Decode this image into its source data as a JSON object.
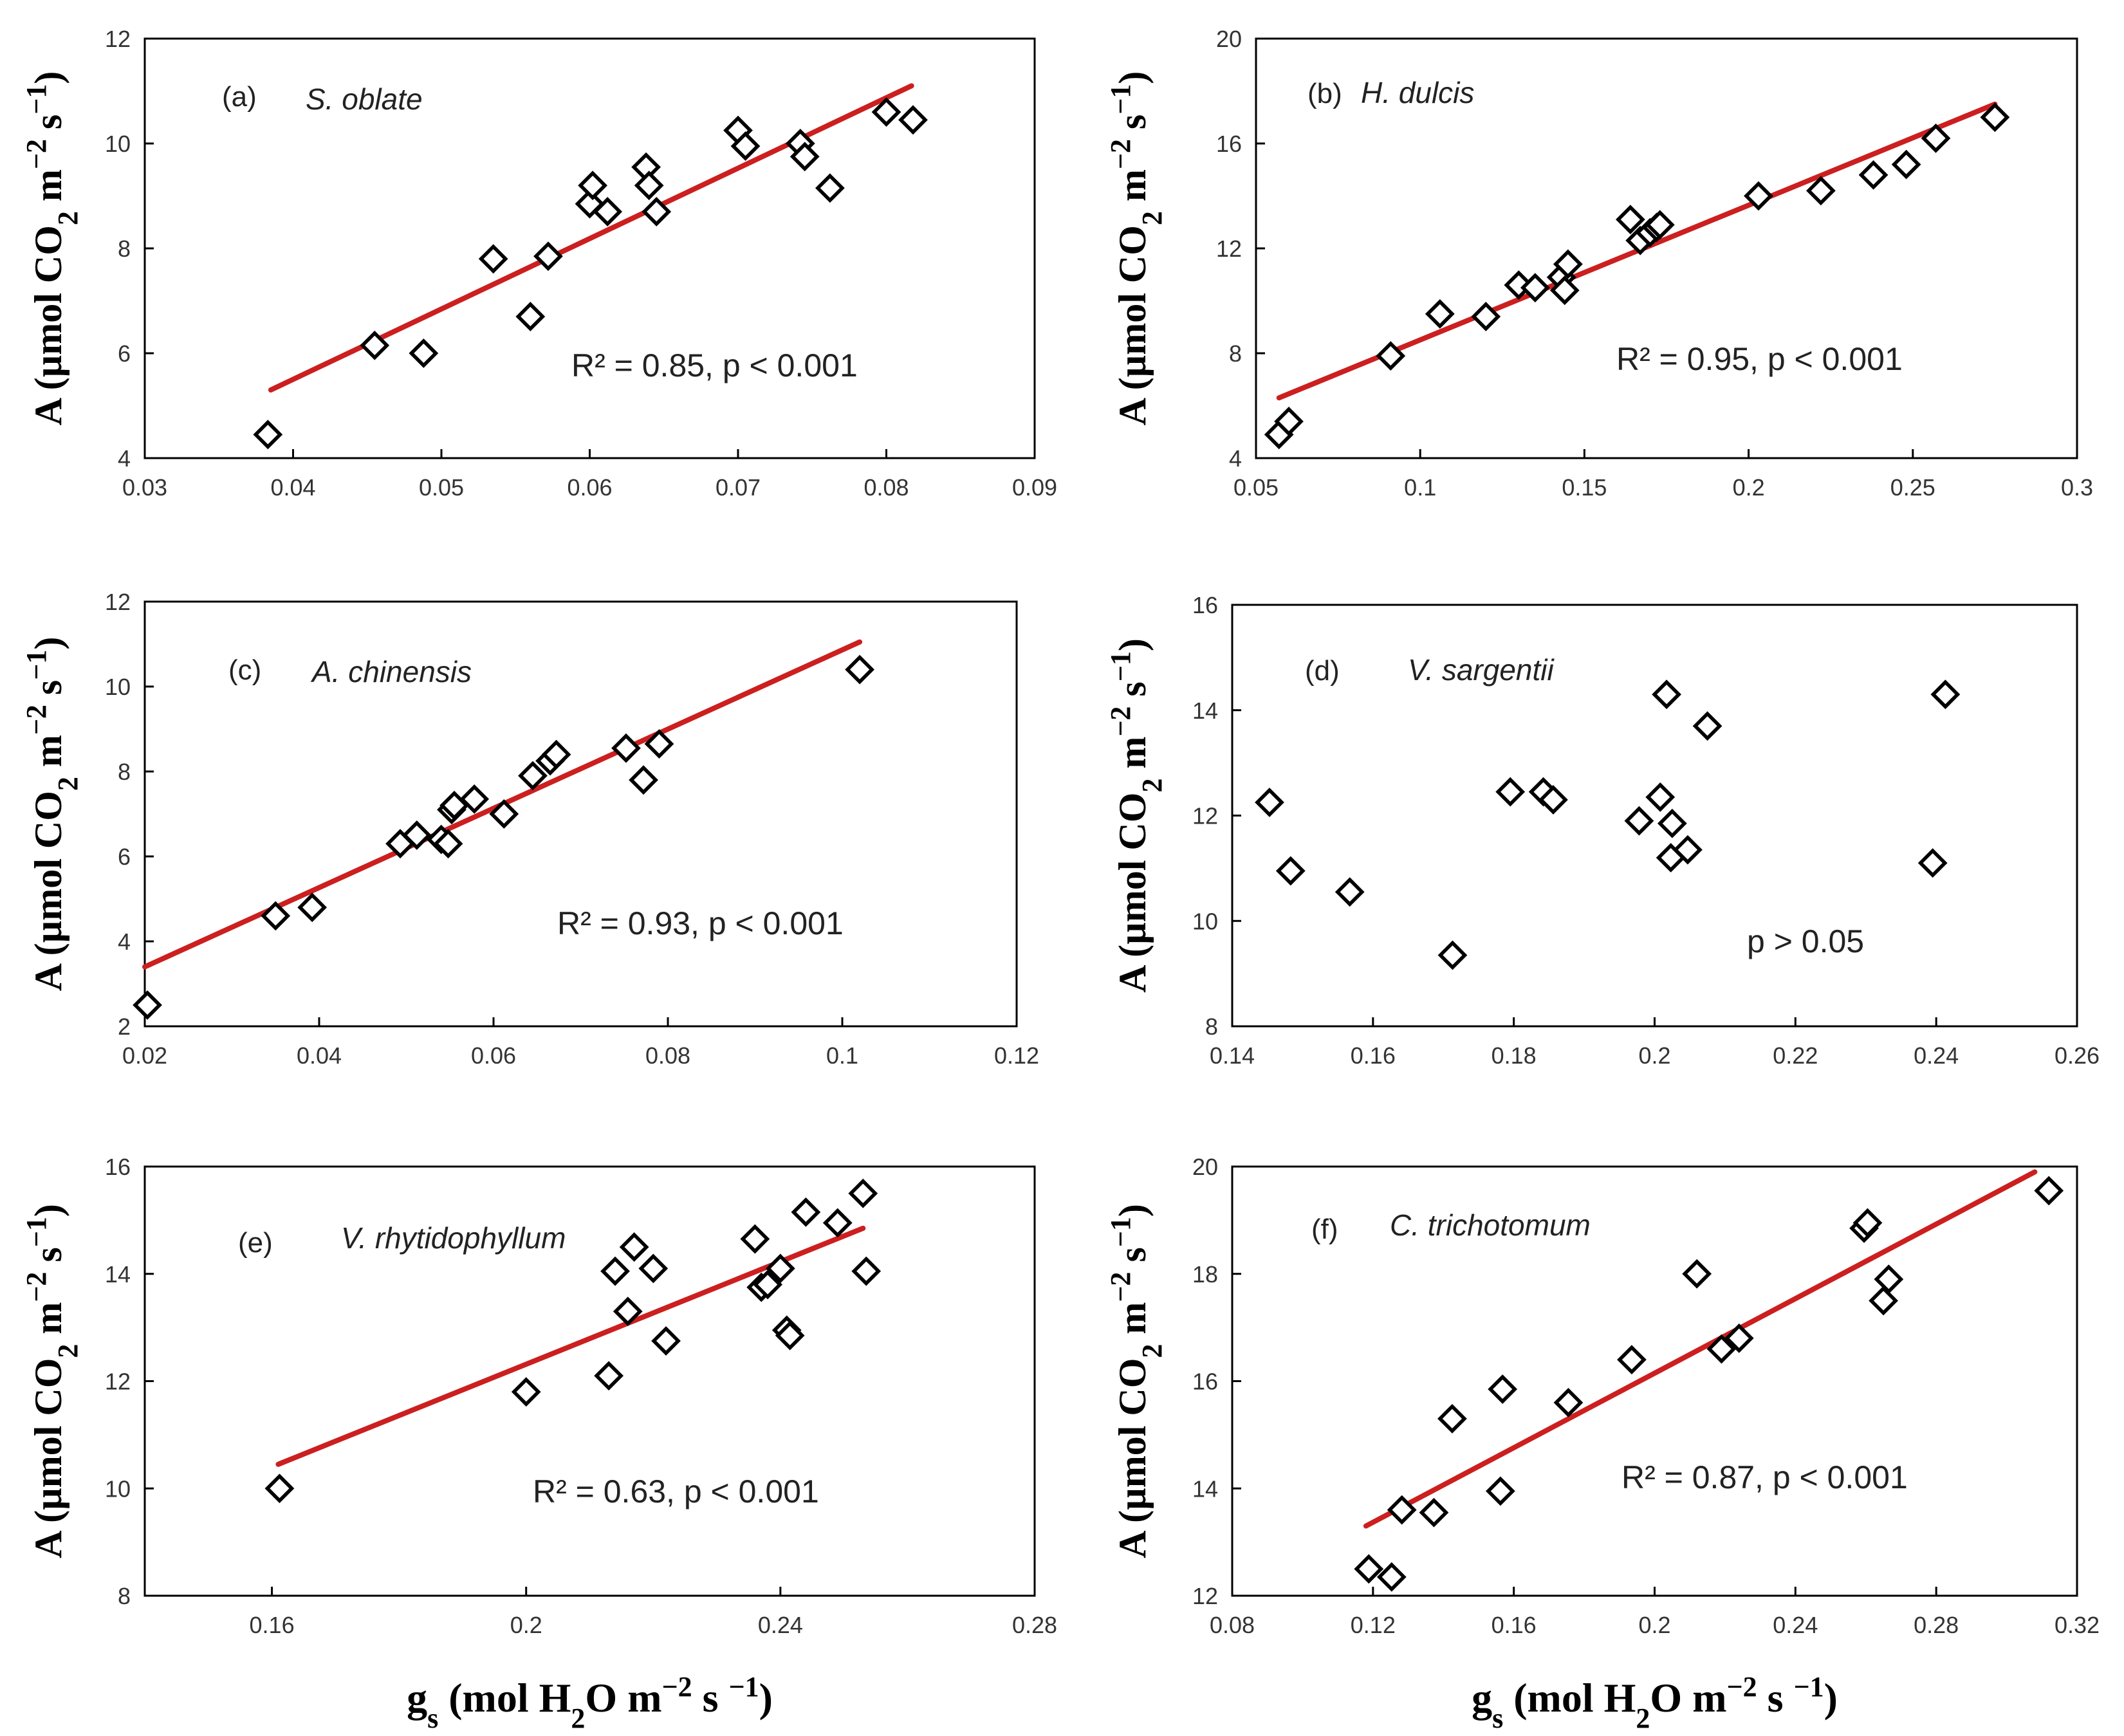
{
  "chart_data": [
    {
      "type": "scatter",
      "panel": "(a)",
      "species": "S. oblate",
      "ylabel": "A (µmol CO2 m−2 s−1)",
      "xlabel": "",
      "xlim": [
        0.03,
        0.09
      ],
      "ylim": [
        4,
        12
      ],
      "xticks": [
        "0.03",
        "0.04",
        "0.05",
        "0.06",
        "0.07",
        "0.08",
        "0.09"
      ],
      "yticks": [
        "4",
        "6",
        "8",
        "10",
        "12"
      ],
      "stat": "R² = 0.85, p < 0.001",
      "x": [
        0.0383,
        0.0455,
        0.0488,
        0.0535,
        0.056,
        0.0572,
        0.06,
        0.0602,
        0.0612,
        0.0638,
        0.064,
        0.0645,
        0.07,
        0.0705,
        0.0742,
        0.0745,
        0.0762,
        0.08,
        0.0818
      ],
      "y": [
        4.45,
        6.15,
        6.0,
        7.8,
        6.7,
        7.85,
        8.85,
        9.2,
        8.7,
        9.55,
        9.2,
        8.7,
        10.25,
        9.95,
        10.0,
        9.75,
        9.15,
        10.6,
        10.45
      ],
      "fit": {
        "x": [
          0.0385,
          0.0817
        ],
        "y": [
          5.3,
          11.1
        ]
      }
    },
    {
      "type": "scatter",
      "panel": "(b)",
      "species": "H. dulcis",
      "ylabel": "A (µmol CO2 m−2 s−1)",
      "xlabel": "",
      "xlim": [
        0.05,
        0.3
      ],
      "ylim": [
        4,
        20
      ],
      "xticks": [
        "0.05",
        "0.1",
        "0.15",
        "0.2",
        "0.25",
        "0.3"
      ],
      "yticks": [
        "4",
        "8",
        "12",
        "16",
        "20"
      ],
      "stat": "R² = 0.95, p < 0.001",
      "x": [
        0.057,
        0.06,
        0.091,
        0.106,
        0.12,
        0.13,
        0.135,
        0.143,
        0.145,
        0.144,
        0.164,
        0.167,
        0.17,
        0.172,
        0.173,
        0.203,
        0.222,
        0.238,
        0.248,
        0.257,
        0.275
      ],
      "y": [
        4.9,
        5.4,
        7.9,
        9.5,
        9.4,
        10.6,
        10.5,
        10.9,
        11.4,
        10.4,
        13.1,
        12.3,
        12.6,
        12.8,
        12.9,
        14.0,
        14.2,
        14.8,
        15.2,
        16.2,
        17.0
      ],
      "fit": {
        "x": [
          0.057,
          0.275
        ],
        "y": [
          6.3,
          17.5
        ]
      }
    },
    {
      "type": "scatter",
      "panel": "(c)",
      "species": "A. chinensis",
      "ylabel": "A (µmol CO2 m−2 s−1)",
      "xlabel": "",
      "xlim": [
        0.02,
        0.12
      ],
      "ylim": [
        2,
        12
      ],
      "xticks": [
        "0.02",
        "0.04",
        "0.06",
        "0.08",
        "0.1",
        "0.12"
      ],
      "yticks": [
        "2",
        "4",
        "6",
        "8",
        "10",
        "12"
      ],
      "stat": "R² = 0.93, p < 0.001",
      "x": [
        0.0203,
        0.035,
        0.0392,
        0.0493,
        0.0512,
        0.054,
        0.0548,
        0.0552,
        0.0555,
        0.0578,
        0.0612,
        0.0645,
        0.0665,
        0.0672,
        0.0752,
        0.0772,
        0.079,
        0.102
      ],
      "y": [
        2.5,
        4.6,
        4.8,
        6.3,
        6.5,
        6.4,
        6.3,
        7.1,
        7.2,
        7.35,
        7.0,
        7.9,
        8.25,
        8.4,
        8.55,
        7.8,
        8.65,
        10.4
      ],
      "fit": {
        "x": [
          0.02,
          0.102
        ],
        "y": [
          3.4,
          11.05
        ]
      }
    },
    {
      "type": "scatter",
      "panel": "(d)",
      "species": "V. sargentii",
      "ylabel": "A (µmol CO2 m−2 s−1)",
      "xlabel": "",
      "xlim": [
        0.14,
        0.26
      ],
      "ylim": [
        8,
        16
      ],
      "xticks": [
        "0.14",
        "0.16",
        "0.18",
        "0.2",
        "0.22",
        "0.24",
        "0.26"
      ],
      "yticks": [
        "8",
        "10",
        "12",
        "14",
        "16"
      ],
      "stat": "p > 0.05",
      "x": [
        0.1453,
        0.1483,
        0.1567,
        0.1713,
        0.1795,
        0.1842,
        0.1856,
        0.1978,
        0.2008,
        0.2017,
        0.2025,
        0.2023,
        0.2047,
        0.2075,
        0.2395,
        0.2413
      ],
      "y": [
        12.25,
        10.95,
        10.55,
        9.35,
        12.45,
        12.45,
        12.3,
        11.9,
        12.35,
        14.3,
        11.85,
        11.2,
        11.35,
        13.7,
        11.1,
        14.3
      ],
      "fit": null
    },
    {
      "type": "scatter",
      "panel": "(e)",
      "species": "V. rhytidophyllum",
      "ylabel": "A (µmol CO2 m−2 s−1)",
      "xlabel": "gs (mol H2O m−2 s −1)",
      "xlim": [
        0.14,
        0.28
      ],
      "ylim": [
        8,
        16
      ],
      "xticks": [
        "0.16",
        "0.2",
        "0.24",
        "0.28"
      ],
      "yticks": [
        "8",
        "10",
        "12",
        "14",
        "16"
      ],
      "stat": "R² = 0.63, p < 0.001",
      "x": [
        0.1612,
        0.2,
        0.213,
        0.214,
        0.216,
        0.217,
        0.22,
        0.222,
        0.236,
        0.237,
        0.238,
        0.24,
        0.241,
        0.2415,
        0.244,
        0.249,
        0.253,
        0.2535
      ],
      "y": [
        10.0,
        11.8,
        12.1,
        14.05,
        13.3,
        14.5,
        14.1,
        12.75,
        14.65,
        13.75,
        13.8,
        14.1,
        12.95,
        12.85,
        15.15,
        14.95,
        15.5,
        14.05
      ],
      "fit": {
        "x": [
          0.161,
          0.253
        ],
        "y": [
          10.45,
          14.85
        ]
      }
    },
    {
      "type": "scatter",
      "panel": "(f)",
      "species": "C. trichotomum",
      "ylabel": "A (µmol CO2 m−2 s−1)",
      "xlabel": "gs (mol H2O m−2 s −1)",
      "xlim": [
        0.08,
        0.32
      ],
      "ylim": [
        12,
        20
      ],
      "xticks": [
        "0.08",
        "0.12",
        "0.16",
        "0.2",
        "0.24",
        "0.28",
        "0.32"
      ],
      "yticks": [
        "12",
        "14",
        "16",
        "18",
        "20"
      ],
      "stat": "R² = 0.87, p < 0.001",
      "x": [
        0.1188,
        0.1253,
        0.1282,
        0.1373,
        0.1425,
        0.1562,
        0.1568,
        0.1755,
        0.1935,
        0.212,
        0.219,
        0.224,
        0.2595,
        0.2605,
        0.265,
        0.2665,
        0.312
      ],
      "y": [
        12.5,
        12.35,
        13.6,
        13.55,
        15.3,
        13.95,
        15.85,
        15.6,
        16.4,
        18.0,
        16.6,
        16.8,
        18.85,
        18.95,
        17.5,
        17.9,
        19.55
      ],
      "fit": {
        "x": [
          0.118,
          0.308
        ],
        "y": [
          13.3,
          19.9
        ]
      }
    }
  ]
}
